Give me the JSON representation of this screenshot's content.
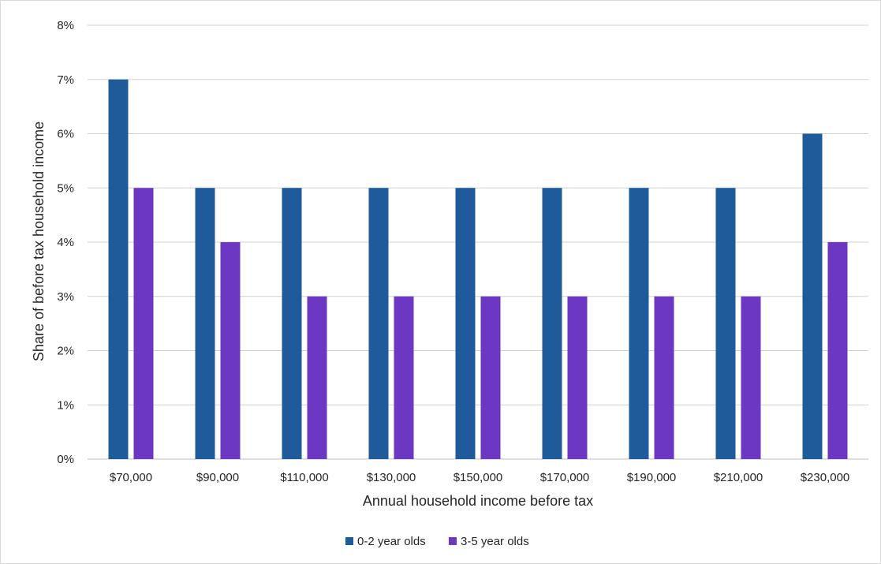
{
  "chart_data": {
    "type": "bar",
    "title": "",
    "xlabel": "Annual household income before tax",
    "ylabel": "Share of before tax household income",
    "categories": [
      "$70,000",
      "$90,000",
      "$110,000",
      "$130,000",
      "$150,000",
      "$170,000",
      "$190,000",
      "$210,000",
      "$230,000"
    ],
    "series": [
      {
        "name": "0-2 year olds",
        "color": "#1f5a9a",
        "values": [
          7,
          5,
          5,
          5,
          5,
          5,
          5,
          5,
          6
        ]
      },
      {
        "name": "3-5 year olds",
        "color": "#6c37c2",
        "values": [
          5,
          4,
          3,
          3,
          3,
          3,
          3,
          3,
          4
        ]
      }
    ],
    "ylim": [
      0,
      8
    ],
    "yticks": [
      0,
      1,
      2,
      3,
      4,
      5,
      6,
      7,
      8
    ],
    "ytick_labels": [
      "0%",
      "1%",
      "2%",
      "3%",
      "4%",
      "5%",
      "6%",
      "7%",
      "8%"
    ],
    "grid": true,
    "legend_position": "bottom"
  }
}
